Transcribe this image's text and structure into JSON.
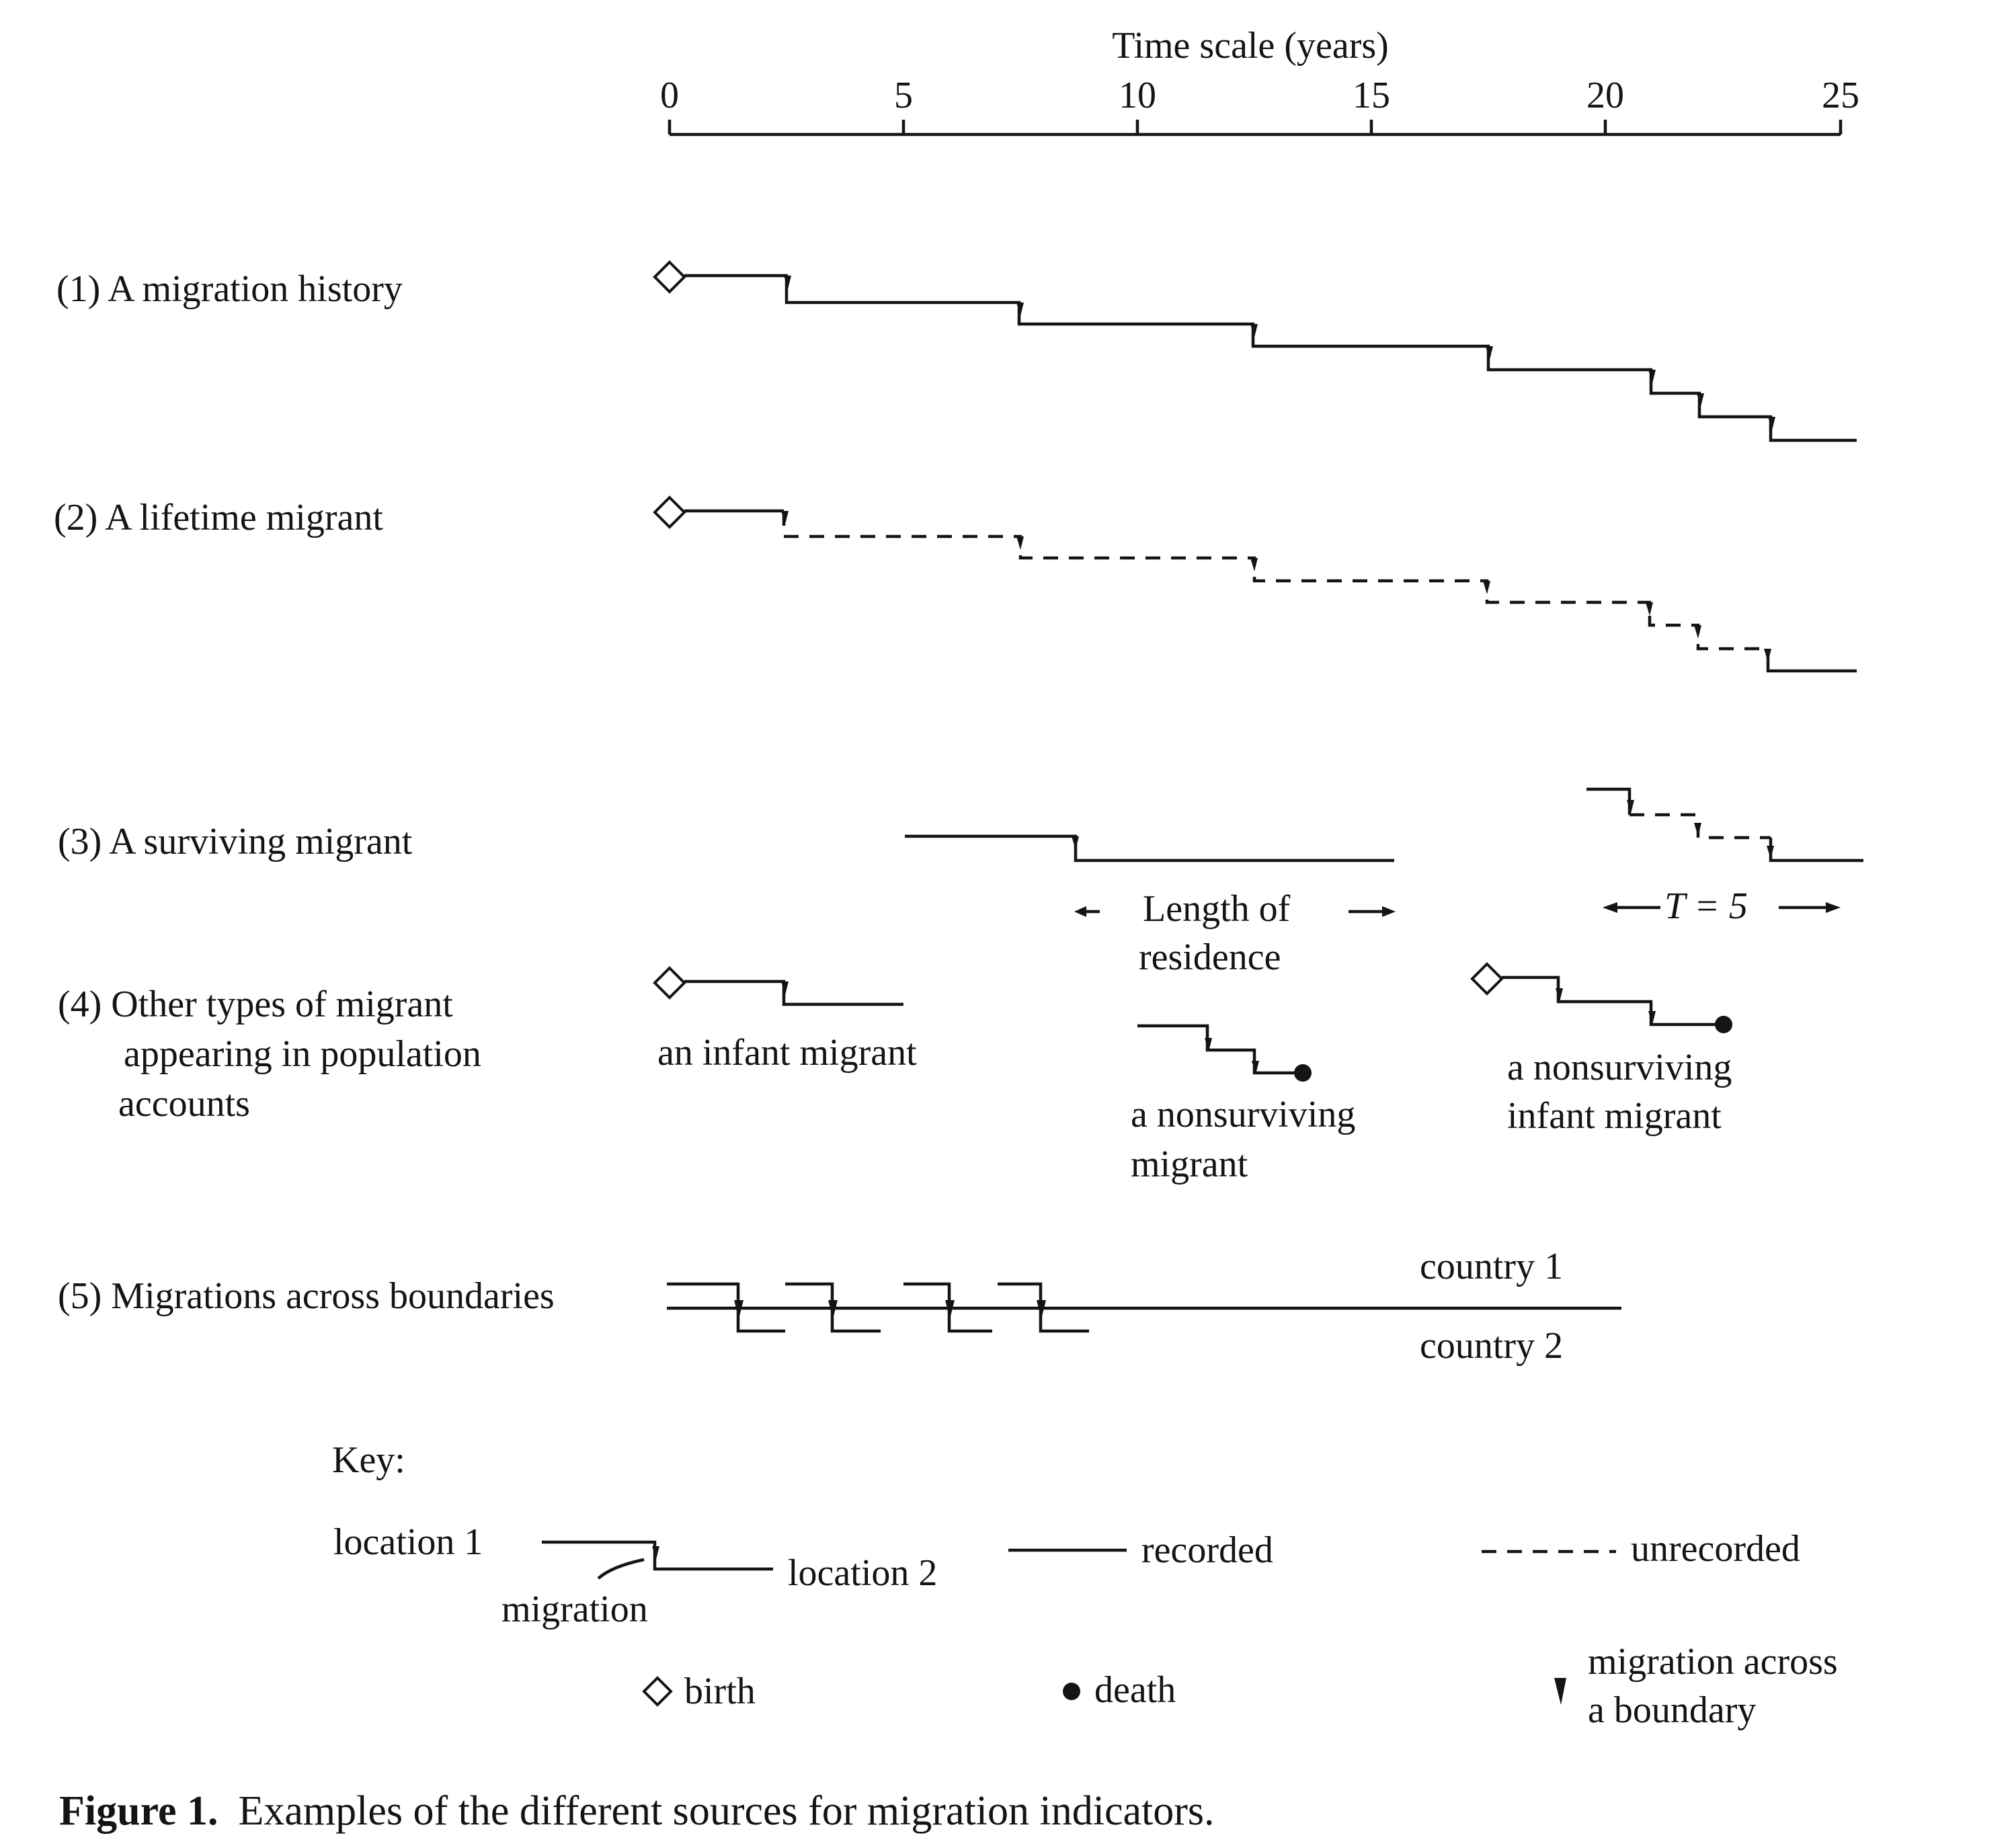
{
  "axis": {
    "title": "Time scale (years)",
    "ticks": [
      "0",
      "5",
      "10",
      "15",
      "20",
      "25"
    ]
  },
  "rows": {
    "r1": "(1)  A migration history",
    "r2": "(2)  A lifetime migrant",
    "r3": "(3)  A surviving migrant",
    "r4_line1": "(4)  Other types of migrant",
    "r4_line2": "appearing in population",
    "r4_line3": "accounts",
    "r5": "(5)  Migrations across boundaries"
  },
  "annotations": {
    "length_line1": "Length of",
    "length_line2": "residence",
    "t_eq": "T = 5",
    "infant": "an infant migrant",
    "nonsurviving_line1": "a nonsurviving",
    "nonsurviving_line2": "migrant",
    "nonsurviving_infant_line1": "a nonsurviving",
    "nonsurviving_infant_line2": "infant migrant",
    "country1": "country 1",
    "country2": "country 2"
  },
  "key": {
    "title": "Key:",
    "location1": "location 1",
    "location2": "location 2",
    "migration": "migration",
    "recorded": "recorded",
    "unrecorded": "unrecorded",
    "birth": "birth",
    "death": "death",
    "boundary_line1": "migration across",
    "boundary_line2": "a boundary"
  },
  "caption": {
    "label": "Figure 1.",
    "text": "Examples of the different sources for migration indicators."
  }
}
